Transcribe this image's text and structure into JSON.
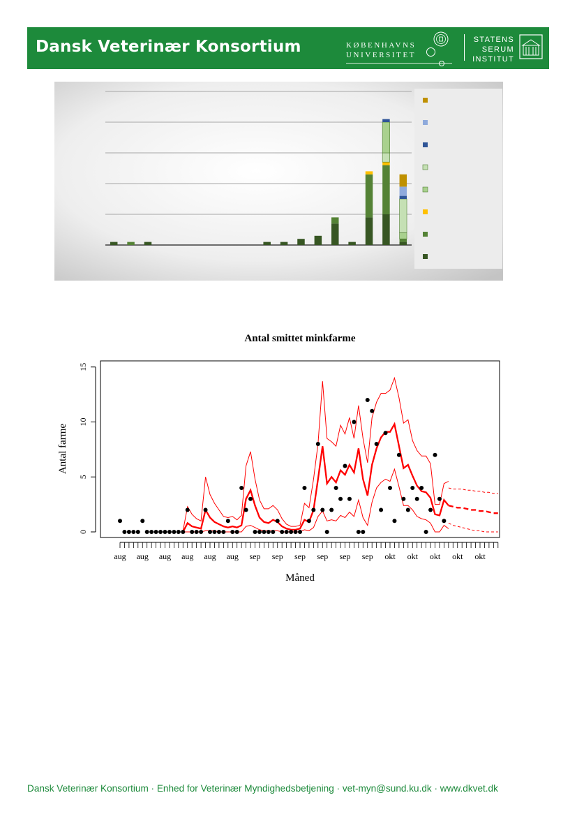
{
  "header": {
    "brand": "Dansk Veterinær Konsortium",
    "ku_line1": "KØBENHAVNS",
    "ku_line2": "UNIVERSITET",
    "ssi_line1": "STATENS",
    "ssi_line2": "SERUM",
    "ssi_line3": "INSTITUT",
    "color": "#1d8a3b"
  },
  "footer": {
    "text": "Dansk Veterinær Konsortium · Enhed for Veterinær Myndighedsbetjening · vet-myn@sund.ku.dk · www.dkvet.dk"
  },
  "chart_data": [
    {
      "type": "bar",
      "stacked": true,
      "grid": true,
      "legend_position": "right",
      "series_colors": [
        "#375623",
        "#548235",
        "#ffc000",
        "#a9d18e",
        "#c5e0b4",
        "#2f5597",
        "#8faadc",
        "#bf9000"
      ],
      "stacks": [
        [
          [
            0,
            1
          ]
        ],
        [
          [
            1,
            1
          ]
        ],
        [
          [
            0,
            1
          ]
        ],
        [],
        [],
        [],
        [],
        [],
        [],
        [
          [
            0,
            1
          ]
        ],
        [
          [
            0,
            1
          ]
        ],
        [
          [
            0,
            2
          ]
        ],
        [
          [
            0,
            3
          ]
        ],
        [
          [
            0,
            7
          ],
          [
            1,
            2
          ]
        ],
        [
          [
            0,
            1
          ]
        ],
        [
          [
            0,
            9
          ],
          [
            1,
            14
          ],
          [
            2,
            1
          ]
        ],
        [
          [
            0,
            10
          ],
          [
            1,
            16
          ],
          [
            2,
            1
          ],
          [
            4,
            3
          ],
          [
            3,
            10
          ],
          [
            5,
            1
          ]
        ],
        [
          [
            0,
            1
          ],
          [
            1,
            1
          ],
          [
            3,
            2
          ],
          [
            4,
            11
          ],
          [
            5,
            1
          ],
          [
            6,
            3
          ],
          [
            7,
            4
          ]
        ]
      ]
    },
    {
      "type": "scatter",
      "title": "Antal smittet minkfarme",
      "xlabel": "Måned",
      "ylabel": "Antal farme",
      "ylim": [
        0,
        15
      ],
      "yticks": [
        0,
        5,
        10,
        15
      ],
      "xtick_labels": [
        "aug",
        "aug",
        "aug",
        "aug",
        "aug",
        "aug",
        "sep",
        "sep",
        "sep",
        "sep",
        "sep",
        "sep",
        "okt",
        "okt",
        "okt",
        "okt",
        "okt"
      ],
      "observed": [
        1,
        0,
        0,
        0,
        0,
        1,
        0,
        0,
        0,
        0,
        0,
        0,
        0,
        0,
        0,
        2,
        0,
        0,
        0,
        2,
        0,
        0,
        0,
        0,
        1,
        0,
        0,
        4,
        2,
        3,
        0,
        0,
        0,
        0,
        0,
        1,
        0,
        0,
        0,
        0,
        0,
        4,
        1,
        2,
        8,
        2,
        0,
        2,
        4,
        3,
        6,
        3,
        10,
        0,
        0,
        12,
        11,
        8,
        2,
        9,
        4,
        1,
        7,
        3,
        2,
        4,
        3,
        4,
        0,
        2,
        7,
        3,
        1
      ],
      "fit_x_start": 14,
      "fit": [
        0,
        0.8,
        0.5,
        0.4,
        0.3,
        2,
        1.3,
        0.9,
        0.7,
        0.5,
        0.4,
        0.5,
        0.4,
        0.6,
        3,
        3.8,
        2.4,
        1.3,
        0.9,
        0.8,
        1.1,
        0.9,
        0.5,
        0.3,
        0.2,
        0.2,
        0.3,
        1.1,
        0.9,
        2,
        4.8,
        7.8,
        4.4,
        5,
        4.5,
        5.6,
        5.2,
        6.1,
        5.4,
        7.6,
        4.8,
        3.3,
        6.1,
        7.6,
        8.6,
        9.1,
        9.1,
        9.8,
        7.8,
        5.8,
        6.1,
        5.1,
        4.2,
        3.7,
        3.6,
        3.1,
        1.6,
        1.5,
        2.9,
        2.4
      ],
      "fit_upper": [
        0.1,
        2.3,
        1.6,
        1.2,
        1,
        5,
        3.4,
        2.6,
        2,
        1.4,
        1.3,
        1.4,
        1.1,
        1.5,
        6,
        7.3,
        4.8,
        2.9,
        2.1,
        2.1,
        2.4,
        2,
        1.2,
        0.7,
        0.5,
        0.5,
        0.6,
        2.6,
        2.2,
        4.8,
        8,
        13.7,
        8.5,
        8.2,
        7.8,
        9.7,
        8.9,
        10.4,
        8.5,
        11.5,
        8.5,
        6.3,
        10.4,
        11.8,
        12.6,
        12.6,
        12.9,
        14,
        12.2,
        9.9,
        10.2,
        8.3,
        7.4,
        6.9,
        6.9,
        6.2,
        2.5,
        2.5,
        4.4,
        4.6
      ],
      "fit_lower": [
        0,
        0,
        0,
        0,
        0,
        0.1,
        0.1,
        0.1,
        0,
        0,
        0,
        0,
        0,
        0,
        0.5,
        0.6,
        0.4,
        0.2,
        0.1,
        0.1,
        0.1,
        0.1,
        0,
        0,
        0,
        0,
        0,
        0.2,
        0.1,
        0.4,
        1.4,
        1.9,
        1,
        1.1,
        1,
        1.5,
        1.3,
        1.8,
        1.4,
        2.9,
        1.3,
        0.6,
        2.7,
        4,
        4.5,
        4.8,
        4.6,
        5.7,
        4.1,
        2.4,
        2.4,
        2,
        1.4,
        1.2,
        1.1,
        0.8,
        0,
        0,
        0.6,
        0.3
      ],
      "forecast_x_start": 73,
      "forecast": [
        2.4,
        2.3,
        2.2,
        2.2,
        2.1,
        2,
        2,
        1.9,
        1.9,
        1.8,
        1.7,
        1.7
      ],
      "forecast_upper": [
        4,
        3.9,
        3.9,
        3.9,
        3.8,
        3.8,
        3.7,
        3.7,
        3.6,
        3.6,
        3.5,
        3.5
      ],
      "forecast_lower": [
        0.8,
        0.6,
        0.5,
        0.4,
        0.3,
        0.2,
        0.1,
        0.1,
        0,
        0,
        0,
        0
      ]
    }
  ]
}
